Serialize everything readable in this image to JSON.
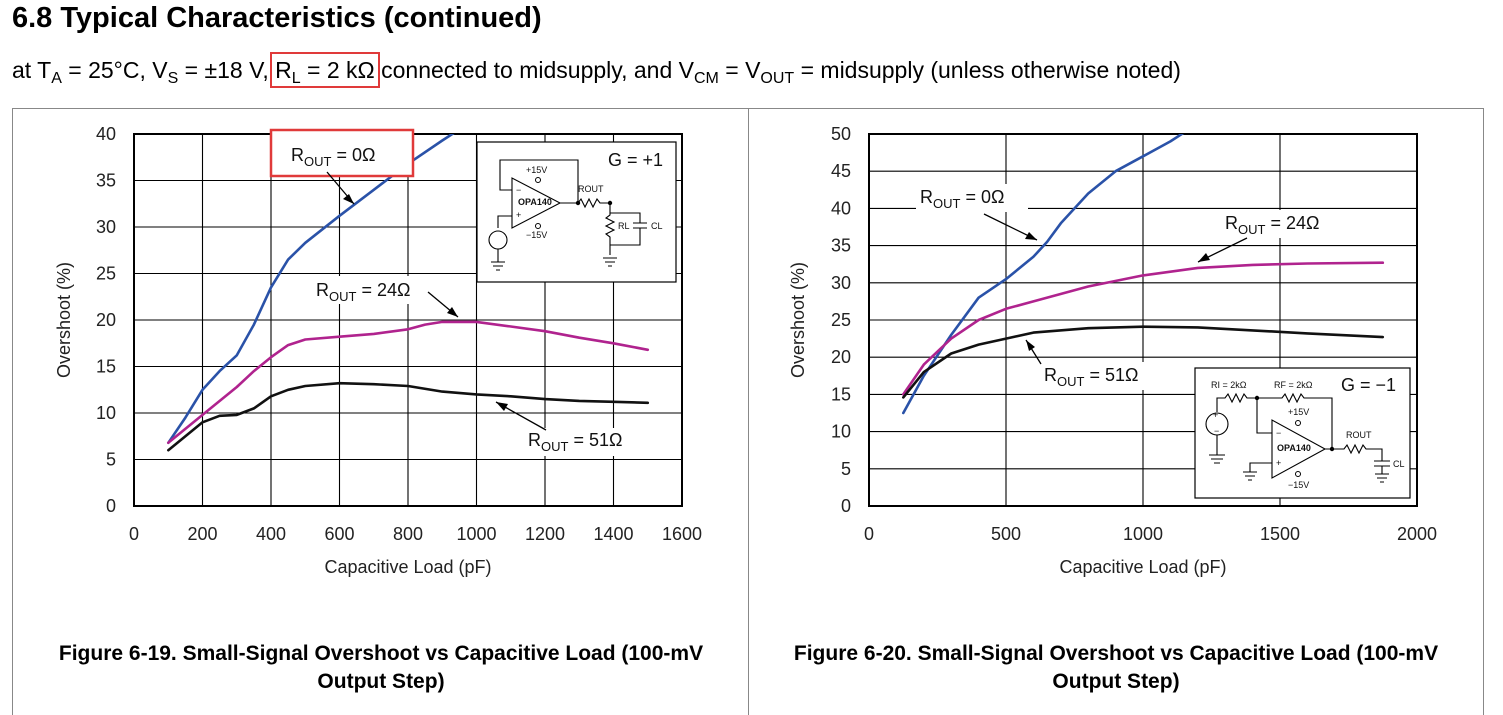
{
  "header": {
    "title": "6.8 Typical Characteristics (continued)",
    "conditions": {
      "t1": "at T",
      "t1_sub": "A",
      "t2": " = 25°C, V",
      "t2_sub": "S",
      "t3": " = ±18 V, ",
      "rl": "R",
      "rl_sub": "L",
      "rl_val": " = 2 kΩ",
      "t4": " connected to midsupply, and V",
      "t4_sub": "CM",
      "t5": " = V",
      "t5_sub": "OUT",
      "t6": " = midsupply (unless otherwise noted)"
    }
  },
  "chart_data": [
    {
      "type": "line",
      "caption": "Figure 6-19. Small-Signal Overshoot vs Capacitive Load (100-mV Output Step)",
      "xlabel": "Capacitive Load (pF)",
      "ylabel": "Overshoot (%)",
      "xlim": [
        0,
        1600
      ],
      "ylim": [
        0,
        40
      ],
      "xticks": [
        "0",
        "200",
        "400",
        "600",
        "800",
        "1000",
        "1200",
        "1400",
        "1600"
      ],
      "yticks": [
        "0",
        "5",
        "10",
        "15",
        "20",
        "25",
        "30",
        "35",
        "40"
      ],
      "grid": true,
      "inset": {
        "gain": "G = +1",
        "part": "OPA140",
        "vpos": "+15V",
        "vneg": "−15V",
        "rout": "ROUT",
        "rl": "RL",
        "cl": "CL"
      },
      "series": [
        {
          "name": "ROUT = 0Ω",
          "color": "#2a52a8",
          "x": [
            100,
            150,
            200,
            250,
            300,
            350,
            400,
            450,
            500,
            600,
            700,
            800,
            900,
            950
          ],
          "y": [
            6.8,
            9.5,
            12.5,
            14.5,
            16.2,
            19.5,
            23.5,
            26.5,
            28.3,
            31.2,
            34.0,
            36.8,
            39.3,
            40.5
          ]
        },
        {
          "name": "ROUT = 24Ω",
          "color": "#b0238e",
          "x": [
            100,
            200,
            300,
            350,
            400,
            450,
            500,
            600,
            700,
            800,
            850,
            900,
            1000,
            1100,
            1200,
            1300,
            1400,
            1500
          ],
          "y": [
            6.8,
            9.8,
            12.8,
            14.5,
            16.0,
            17.3,
            17.9,
            18.2,
            18.5,
            19.0,
            19.5,
            19.8,
            19.8,
            19.3,
            18.8,
            18.1,
            17.5,
            16.8
          ]
        },
        {
          "name": "ROUT = 51Ω",
          "color": "#111111",
          "x": [
            100,
            150,
            200,
            250,
            300,
            350,
            400,
            450,
            500,
            600,
            700,
            800,
            900,
            1000,
            1100,
            1200,
            1300,
            1400,
            1500
          ],
          "y": [
            6.0,
            7.5,
            9.0,
            9.7,
            9.8,
            10.5,
            11.8,
            12.5,
            12.9,
            13.2,
            13.1,
            12.9,
            12.3,
            12.0,
            11.8,
            11.5,
            11.3,
            11.2,
            11.1
          ]
        }
      ],
      "annotations": {
        "r0": {
          "main": "R",
          "sub": "OUT",
          "val": " = 0Ω"
        },
        "r24": {
          "main": "R",
          "sub": "OUT",
          "val": " = 24Ω"
        },
        "r51": {
          "main": "R",
          "sub": "OUT",
          "val": " = 51Ω"
        }
      }
    },
    {
      "type": "line",
      "caption": "Figure 6-20. Small-Signal Overshoot vs Capacitive Load (100-mV Output Step)",
      "xlabel": "Capacitive Load (pF)",
      "ylabel": "Overshoot (%)",
      "xlim": [
        0,
        2000
      ],
      "ylim": [
        0,
        50
      ],
      "xticks": [
        "0",
        "500",
        "1000",
        "1500",
        "2000"
      ],
      "yticks": [
        "0",
        "5",
        "10",
        "15",
        "20",
        "25",
        "30",
        "35",
        "40",
        "45",
        "50"
      ],
      "grid": true,
      "inset": {
        "gain": "G = −1",
        "part": "OPA140",
        "vpos": "+15V",
        "vneg": "−15V",
        "ri": "RI = 2kΩ",
        "rf": "RF = 2kΩ",
        "rout": "ROUT",
        "cl": "CL"
      },
      "series": [
        {
          "name": "ROUT = 0Ω",
          "color": "#2a52a8",
          "x": [
            125,
            200,
            300,
            400,
            500,
            600,
            650,
            700,
            800,
            900,
            1000,
            1100,
            1150
          ],
          "y": [
            12.5,
            17.5,
            23.0,
            28.0,
            30.5,
            33.5,
            35.5,
            38.0,
            42.0,
            45.0,
            47.0,
            49.0,
            50.2
          ]
        },
        {
          "name": "ROUT = 24Ω",
          "color": "#b0238e",
          "x": [
            125,
            200,
            300,
            400,
            500,
            600,
            800,
            1000,
            1200,
            1400,
            1600,
            1875
          ],
          "y": [
            15.0,
            19.0,
            22.5,
            25.0,
            26.5,
            27.5,
            29.5,
            31.0,
            32.0,
            32.4,
            32.6,
            32.7
          ]
        },
        {
          "name": "ROUT = 51Ω",
          "color": "#111111",
          "x": [
            125,
            200,
            300,
            400,
            500,
            600,
            800,
            1000,
            1200,
            1400,
            1600,
            1875
          ],
          "y": [
            14.6,
            18.0,
            20.5,
            21.7,
            22.5,
            23.3,
            23.9,
            24.1,
            24.0,
            23.6,
            23.2,
            22.7
          ]
        }
      ],
      "annotations": {
        "r0": {
          "main": "R",
          "sub": "OUT",
          "val": " = 0Ω"
        },
        "r24": {
          "main": "R",
          "sub": "OUT",
          "val": " = 24Ω"
        },
        "r51": {
          "main": "R",
          "sub": "OUT",
          "val": " = 51Ω"
        }
      }
    }
  ]
}
